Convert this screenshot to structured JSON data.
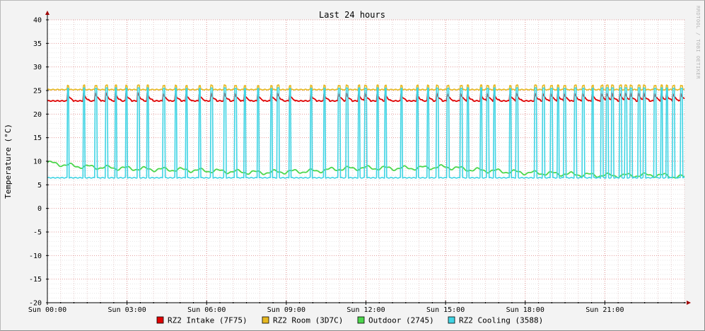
{
  "chart_data": {
    "type": "line",
    "title": "Last 24 hours",
    "ylabel": "Temperature (°C)",
    "ylim": [
      -20,
      40
    ],
    "yticks": [
      40,
      35,
      30,
      25,
      20,
      15,
      10,
      5,
      0,
      -5,
      -10,
      -15,
      -20
    ],
    "xlim": [
      0,
      24
    ],
    "xticks": [
      {
        "label": "Sun 00:00",
        "hour": 0
      },
      {
        "label": "Sun 03:00",
        "hour": 3
      },
      {
        "label": "Sun 06:00",
        "hour": 6
      },
      {
        "label": "Sun 09:00",
        "hour": 9
      },
      {
        "label": "Sun 12:00",
        "hour": 12
      },
      {
        "label": "Sun 15:00",
        "hour": 15
      },
      {
        "label": "Sun 18:00",
        "hour": 18
      },
      {
        "label": "Sun 21:00",
        "hour": 21
      }
    ],
    "watermark": "RRDTOOL / TOBI OETIKER",
    "grid": true,
    "series": [
      {
        "name": "RZ2 Intake (7F75)",
        "color": "#e00000",
        "base": 22.8,
        "peak": 24.6,
        "peaks": [
          0.75,
          1.35,
          1.8,
          2.2,
          2.55,
          2.95,
          3.4,
          3.75,
          4.35,
          4.8,
          5.2,
          5.7,
          6.15,
          6.65,
          7.05,
          7.4,
          7.9,
          8.4,
          8.65,
          9.1,
          9.9,
          10.4,
          10.95,
          11.25,
          11.7,
          11.95,
          12.4,
          12.7,
          13.3,
          13.9,
          14.3,
          14.65,
          15.05,
          15.55,
          15.8,
          16.3,
          16.55,
          16.8,
          17.4,
          17.65,
          18.35,
          18.65,
          18.95,
          19.2,
          19.45,
          19.85,
          20.15,
          20.5,
          20.85,
          21.05,
          21.25,
          21.55,
          21.75,
          21.95,
          22.25,
          22.45,
          22.85,
          23.1,
          23.3,
          23.55,
          23.85
        ]
      },
      {
        "name": "RZ2 Room (3D7C)",
        "color": "#e6b820",
        "base": 25.2,
        "peak": 26.1,
        "peaks": [
          0.75,
          1.35,
          1.8,
          2.2,
          2.55,
          2.95,
          3.4,
          3.75,
          4.35,
          4.8,
          5.2,
          5.7,
          6.15,
          6.65,
          7.05,
          7.4,
          7.9,
          8.4,
          8.65,
          9.1,
          9.9,
          10.4,
          10.95,
          11.25,
          11.7,
          11.95,
          12.4,
          12.7,
          13.3,
          13.9,
          14.3,
          14.65,
          15.05,
          15.55,
          15.8,
          16.3,
          16.55,
          16.8,
          17.4,
          17.65,
          18.35,
          18.65,
          18.95,
          19.2,
          19.45,
          19.85,
          20.15,
          20.5,
          20.85,
          21.05,
          21.25,
          21.55,
          21.75,
          21.95,
          22.25,
          22.45,
          22.85,
          23.1,
          23.3,
          23.55,
          23.85
        ]
      },
      {
        "name": "Outdoor (2745)",
        "color": "#4cd64c",
        "x": [
          0,
          1,
          2,
          3,
          4,
          5,
          6,
          7,
          8,
          9,
          10,
          11,
          12,
          13,
          14,
          15,
          16,
          17,
          18,
          19,
          20,
          21,
          22,
          23,
          24
        ],
        "values": [
          9.7,
          9.0,
          8.7,
          8.5,
          8.3,
          8.2,
          8.0,
          7.8,
          7.6,
          7.8,
          7.9,
          8.4,
          8.6,
          8.5,
          8.6,
          8.8,
          8.2,
          7.9,
          7.6,
          7.4,
          7.2,
          7.0,
          7.0,
          7.1,
          6.6
        ]
      },
      {
        "name": "RZ2 Cooling (3588)",
        "color": "#40d4e4",
        "base": 6.5,
        "peak": 25.5,
        "peaks": [
          0.75,
          1.35,
          1.8,
          2.2,
          2.55,
          2.95,
          3.4,
          3.75,
          4.35,
          4.8,
          5.2,
          5.7,
          6.15,
          6.65,
          7.05,
          7.4,
          7.9,
          8.4,
          8.65,
          9.1,
          9.9,
          10.4,
          10.95,
          11.25,
          11.7,
          11.95,
          12.4,
          12.7,
          13.3,
          13.9,
          14.3,
          14.65,
          15.05,
          15.55,
          15.8,
          16.3,
          16.55,
          16.8,
          17.4,
          17.65,
          18.35,
          18.65,
          18.95,
          19.2,
          19.45,
          19.85,
          20.15,
          20.5,
          20.85,
          21.05,
          21.25,
          21.55,
          21.75,
          21.95,
          22.25,
          22.45,
          22.85,
          23.1,
          23.3,
          23.55,
          23.85
        ]
      }
    ]
  }
}
